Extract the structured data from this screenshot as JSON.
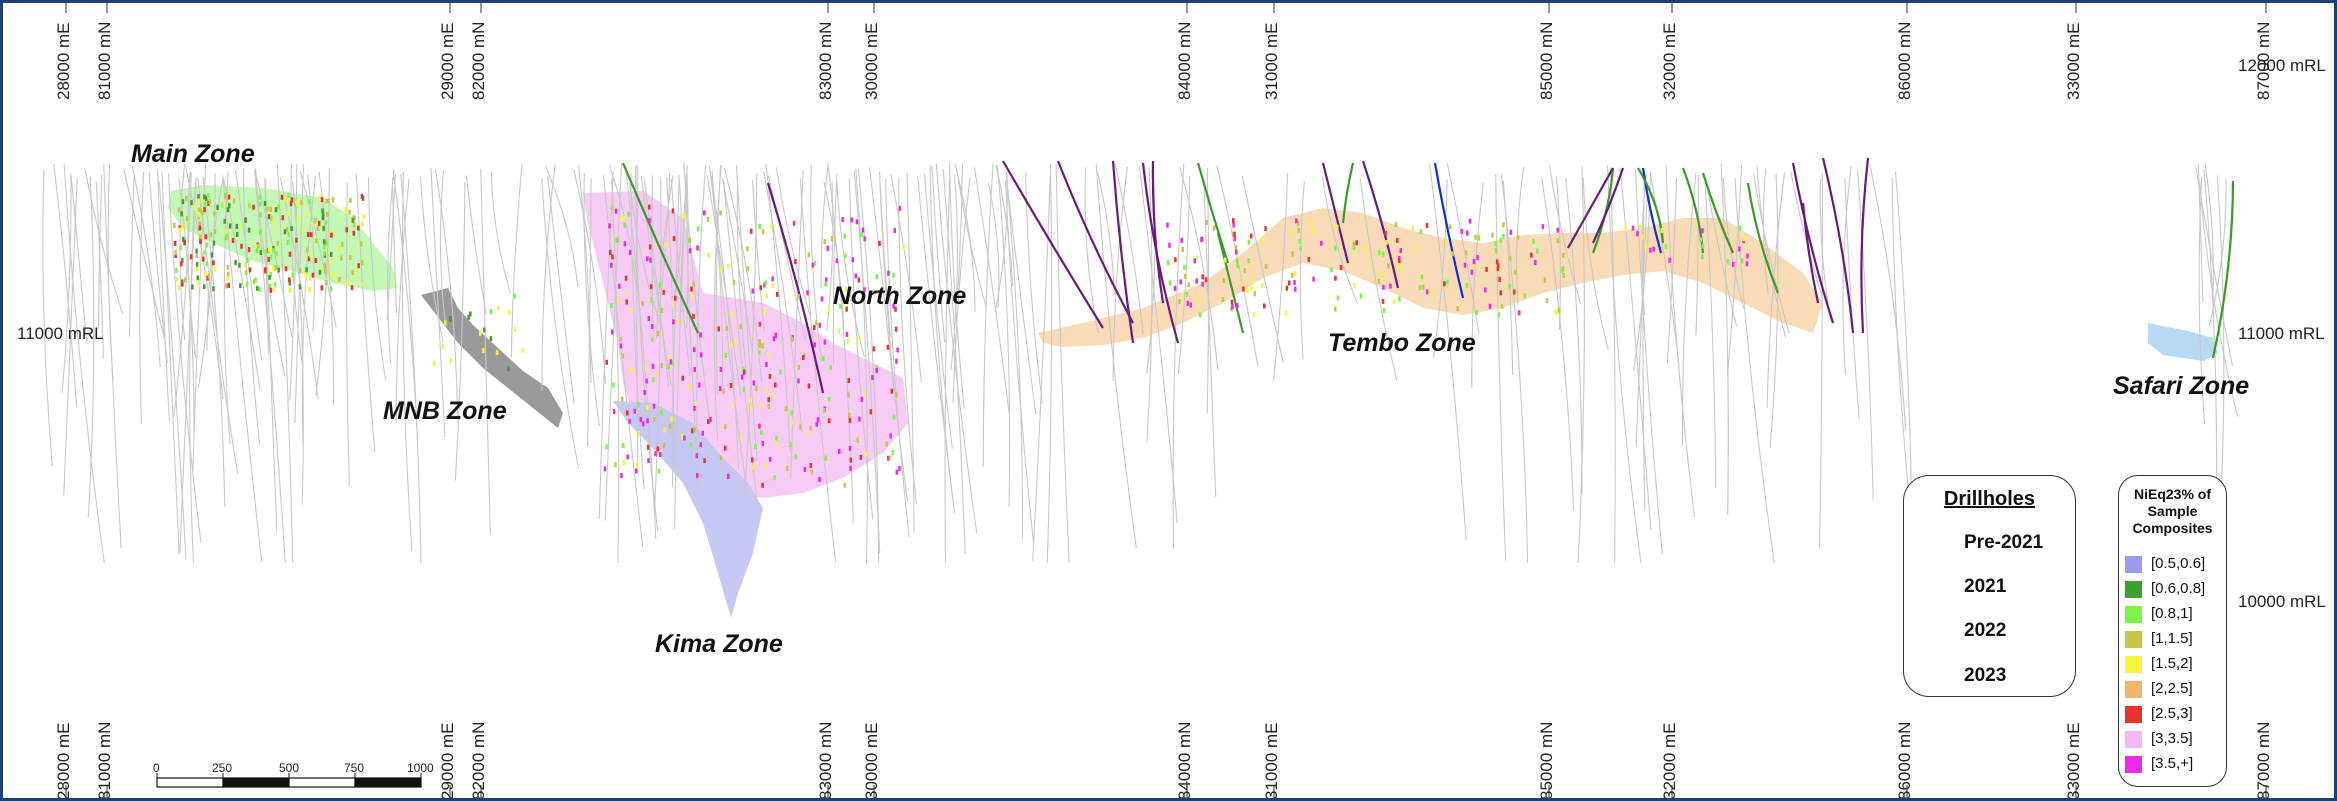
{
  "axis_labels": {
    "top": [
      "28000 mE",
      "81000 mN",
      "29000 mE",
      "82000 mN",
      "83000 mN",
      "30000 mE",
      "84000 mN",
      "31000 mE",
      "85000 mN",
      "32000 mE",
      "86000 mN",
      "33000 mE",
      "87000 mN"
    ],
    "bottom": [
      "28000 mE",
      "81000 mN",
      "29000 mE",
      "82000 mN",
      "83000 mN",
      "30000 mE",
      "84000 mN",
      "31000 mE",
      "85000 mN",
      "32000 mE",
      "86000 mN",
      "33000 mE",
      "87000 mN"
    ]
  },
  "rl_labels": {
    "left": [
      "11000 mRL"
    ],
    "right": [
      "12000 mRL",
      "11000 mRL",
      "10000 mRL"
    ]
  },
  "zones": [
    "Main Zone",
    "MNB Zone",
    "North Zone",
    "Kima Zone",
    "Tembo Zone",
    "Safari Zone"
  ],
  "drillholes_legend": {
    "title": "Drillholes",
    "items": [
      {
        "label": "Pre-2021",
        "color": "#c8c8c8"
      },
      {
        "label": "2021",
        "color": "#1030d0"
      },
      {
        "label": "2022",
        "color": "#3a9a2a"
      },
      {
        "label": "2023",
        "color": "#6a1a7a"
      }
    ]
  },
  "nieq_legend": {
    "title": "NiEq23% of Sample Composites",
    "title_lines": [
      "NiEq23% of",
      "Sample",
      "Composites"
    ],
    "items": [
      {
        "label": "[0.5,0.6]",
        "color": "#9b9bf0"
      },
      {
        "label": "[0.6,0.8]",
        "color": "#3f9f2f"
      },
      {
        "label": "[0.8,1]",
        "color": "#7cf54a"
      },
      {
        "label": "[1,1.5]",
        "color": "#c7c545"
      },
      {
        "label": "[1.5,2]",
        "color": "#f6f53d"
      },
      {
        "label": "[2,2.5]",
        "color": "#f2b36a"
      },
      {
        "label": "[2.5,3]",
        "color": "#e8342a"
      },
      {
        "label": "[3,3.5]",
        "color": "#f6b5f4"
      },
      {
        "label": "[3.5,+]",
        "color": "#ee2ae8"
      }
    ]
  },
  "scale_bar": {
    "ticks": [
      "0",
      "250",
      "500",
      "750",
      "1000"
    ]
  },
  "colors": {
    "frame": "#1f3f6e",
    "main_zone": "#b8f7a8",
    "mnb_zone": "#9a9a9a",
    "kima_pink": "#f7c8f4",
    "kima_blue": "#c3c6f2",
    "tembo": "#fad9b3",
    "safari": "#b9d8f4"
  }
}
